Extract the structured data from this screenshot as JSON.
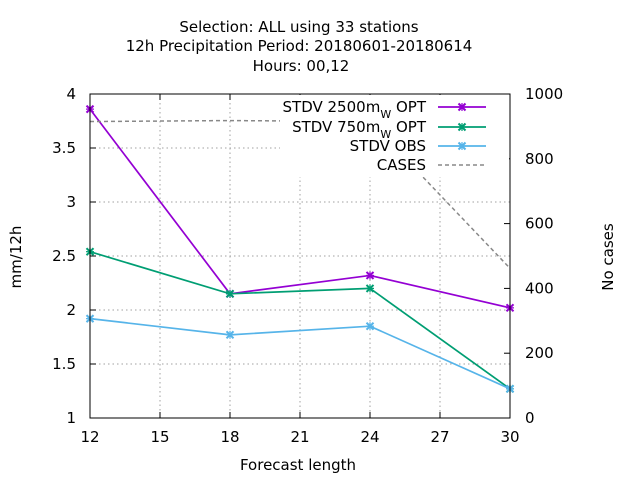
{
  "title": {
    "line1": "Selection: ALL using    33 stations",
    "line2": "12h Precipitation    Period: 20180601-20180614",
    "line3": "Hours:  00,12"
  },
  "chart_data": {
    "type": "line",
    "xlabel": "Forecast length",
    "ylabel": "mm/12h",
    "y2label": "No cases",
    "xlim": [
      12,
      30
    ],
    "ylim": [
      1,
      4
    ],
    "y2lim": [
      0,
      1000
    ],
    "xticks": [
      12,
      15,
      18,
      21,
      24,
      27,
      30
    ],
    "yticks": [
      1,
      1.5,
      2,
      2.5,
      3,
      3.5,
      4
    ],
    "y2ticks": [
      0,
      200,
      400,
      600,
      800,
      1000
    ],
    "grid": true,
    "legend_position": "top-right",
    "series": [
      {
        "name": "STDV 2500m",
        "subscript": "W",
        "suffix": " OPT",
        "axis": "y",
        "color": "#9400d3",
        "style": "solid-marker",
        "x": [
          12,
          18,
          24,
          30
        ],
        "values": [
          3.86,
          2.15,
          2.32,
          2.02
        ]
      },
      {
        "name": "STDV 750m",
        "subscript": "W",
        "suffix": " OPT",
        "axis": "y",
        "color": "#009e73",
        "style": "solid-marker",
        "x": [
          12,
          18,
          24,
          30
        ],
        "values": [
          2.54,
          2.15,
          2.2,
          1.27
        ]
      },
      {
        "name": "STDV OBS",
        "subscript": "",
        "suffix": "",
        "axis": "y",
        "color": "#56b4e9",
        "style": "solid-marker",
        "x": [
          12,
          18,
          24,
          30
        ],
        "values": [
          1.92,
          1.77,
          1.85,
          1.27
        ]
      },
      {
        "name": "CASES",
        "subscript": "",
        "suffix": "",
        "axis": "y2",
        "color": "#888888",
        "style": "dashed",
        "x": [
          12,
          18,
          24,
          30
        ],
        "values": [
          915,
          918,
          915,
          462
        ]
      }
    ]
  }
}
